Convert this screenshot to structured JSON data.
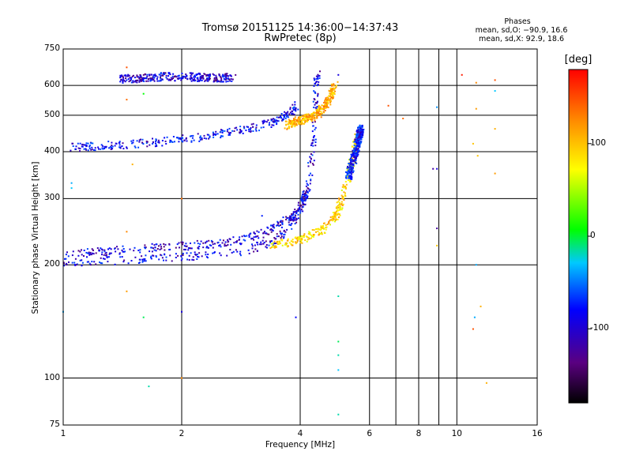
{
  "chart_data": {
    "type": "scatter",
    "title": "Tromsø 20151125 14:36:00−14:37:43",
    "subtitle": "RwPretec (8p)",
    "xlabel": "Frequency [MHz]",
    "ylabel": "Stationary phase Virtual Height [km]",
    "x_scale": "log",
    "y_scale": "log",
    "xlim": [
      1,
      16
    ],
    "ylim": [
      75,
      750
    ],
    "x_ticks": [
      1,
      2,
      4,
      6,
      8,
      10,
      16
    ],
    "y_ticks": [
      75,
      100,
      200,
      300,
      400,
      500,
      600,
      750
    ],
    "grid": true,
    "stats": {
      "heading": "Phases",
      "line_o": "mean, sd,O: −90.9, 16.6",
      "line_x": "mean, sd,X:  92.9, 18.6"
    },
    "colorbar": {
      "label": "[deg]",
      "ticks": [
        100,
        0,
        -100
      ],
      "range": [
        -180,
        180
      ],
      "colormap": "rainbow",
      "colors": [
        "#000000",
        "#5a0080",
        "#0000ff",
        "#00c8ff",
        "#00ff00",
        "#ffff00",
        "#ff8800",
        "#ff0000"
      ]
    },
    "traces": [
      {
        "kind": "o",
        "phase": -105,
        "points": [
          [
            1.0,
            203
          ],
          [
            1.1,
            204
          ],
          [
            1.3,
            205
          ],
          [
            1.6,
            207
          ],
          [
            1.9,
            209
          ],
          [
            2.2,
            211
          ],
          [
            2.6,
            214
          ],
          [
            3.0,
            220
          ],
          [
            3.3,
            228
          ],
          [
            3.6,
            240
          ],
          [
            3.85,
            260
          ],
          [
            4.05,
            290
          ],
          [
            4.2,
            330
          ],
          [
            4.3,
            390
          ],
          [
            4.35,
            450
          ],
          [
            4.38,
            520
          ],
          [
            4.4,
            600
          ],
          [
            4.42,
            650
          ]
        ]
      },
      {
        "kind": "o",
        "phase": -110,
        "points": [
          [
            1.0,
            212
          ],
          [
            1.2,
            216
          ],
          [
            1.5,
            220
          ],
          [
            1.8,
            223
          ],
          [
            2.1,
            225
          ],
          [
            2.5,
            228
          ],
          [
            2.9,
            234
          ],
          [
            3.3,
            245
          ],
          [
            3.7,
            262
          ],
          [
            4.0,
            285
          ],
          [
            4.2,
            315
          ]
        ]
      },
      {
        "kind": "o2",
        "phase": -100,
        "points": [
          [
            1.05,
            410
          ],
          [
            1.2,
            413
          ],
          [
            1.4,
            417
          ],
          [
            1.7,
            423
          ],
          [
            2.0,
            432
          ],
          [
            2.4,
            442
          ],
          [
            2.8,
            455
          ],
          [
            3.1,
            465
          ],
          [
            3.4,
            478
          ],
          [
            3.7,
            500
          ],
          [
            3.95,
            530
          ]
        ]
      },
      {
        "kind": "o3",
        "phase": -112,
        "points": [
          [
            1.4,
            622
          ],
          [
            1.6,
            628
          ],
          [
            1.8,
            633
          ],
          [
            2.1,
            632
          ],
          [
            2.4,
            628
          ],
          [
            2.7,
            630
          ]
        ]
      },
      {
        "kind": "x",
        "phase": 90,
        "points": [
          [
            3.4,
            226
          ],
          [
            3.8,
            230
          ],
          [
            4.2,
            238
          ],
          [
            4.6,
            250
          ],
          [
            4.9,
            268
          ],
          [
            5.1,
            295
          ],
          [
            5.3,
            340
          ],
          [
            5.5,
            400
          ],
          [
            5.6,
            440
          ]
        ]
      },
      {
        "kind": "x2",
        "phase": 110,
        "points": [
          [
            3.7,
            470
          ],
          [
            4.0,
            485
          ],
          [
            4.4,
            500
          ],
          [
            4.7,
            540
          ],
          [
            4.9,
            600
          ]
        ]
      },
      {
        "kind": "x3",
        "phase": -95,
        "points": [
          [
            5.3,
            340
          ],
          [
            5.5,
            390
          ],
          [
            5.65,
            440
          ],
          [
            5.7,
            460
          ]
        ]
      }
    ],
    "scatter": [
      [
        1.45,
        670,
        150
      ],
      [
        1.45,
        550,
        140
      ],
      [
        1.5,
        370,
        110
      ],
      [
        1.45,
        245,
        130
      ],
      [
        1.45,
        170,
        120
      ],
      [
        1.6,
        145,
        -10
      ],
      [
        1.6,
        570,
        0
      ],
      [
        1.65,
        95,
        -20
      ],
      [
        1.05,
        330,
        -40
      ],
      [
        1.05,
        320,
        -30
      ],
      [
        1.0,
        150,
        -40
      ],
      [
        2.0,
        300,
        140
      ],
      [
        2.0,
        150,
        -110
      ],
      [
        2.0,
        100,
        130
      ],
      [
        3.2,
        270,
        -90
      ],
      [
        3.9,
        145,
        -100
      ],
      [
        5.0,
        165,
        -20
      ],
      [
        5.0,
        125,
        -10
      ],
      [
        5.0,
        115,
        -20
      ],
      [
        5.0,
        105,
        -30
      ],
      [
        5.0,
        80,
        -20
      ],
      [
        5.0,
        640,
        -110
      ],
      [
        6.7,
        530,
        150
      ],
      [
        7.3,
        490,
        140
      ],
      [
        8.7,
        360,
        -130
      ],
      [
        8.9,
        360,
        -110
      ],
      [
        8.9,
        525,
        -50
      ],
      [
        8.9,
        250,
        -130
      ],
      [
        8.9,
        225,
        100
      ],
      [
        10.3,
        640,
        170
      ],
      [
        11.2,
        610,
        130
      ],
      [
        11.2,
        520,
        120
      ],
      [
        11.0,
        420,
        100
      ],
      [
        11.3,
        390,
        100
      ],
      [
        11.2,
        200,
        -40
      ],
      [
        11.1,
        145,
        -40
      ],
      [
        11.0,
        135,
        150
      ],
      [
        11.5,
        155,
        110
      ],
      [
        12.5,
        620,
        150
      ],
      [
        12.5,
        580,
        -30
      ],
      [
        12.5,
        460,
        110
      ],
      [
        12.5,
        350,
        120
      ],
      [
        11.9,
        97,
        110
      ]
    ]
  }
}
